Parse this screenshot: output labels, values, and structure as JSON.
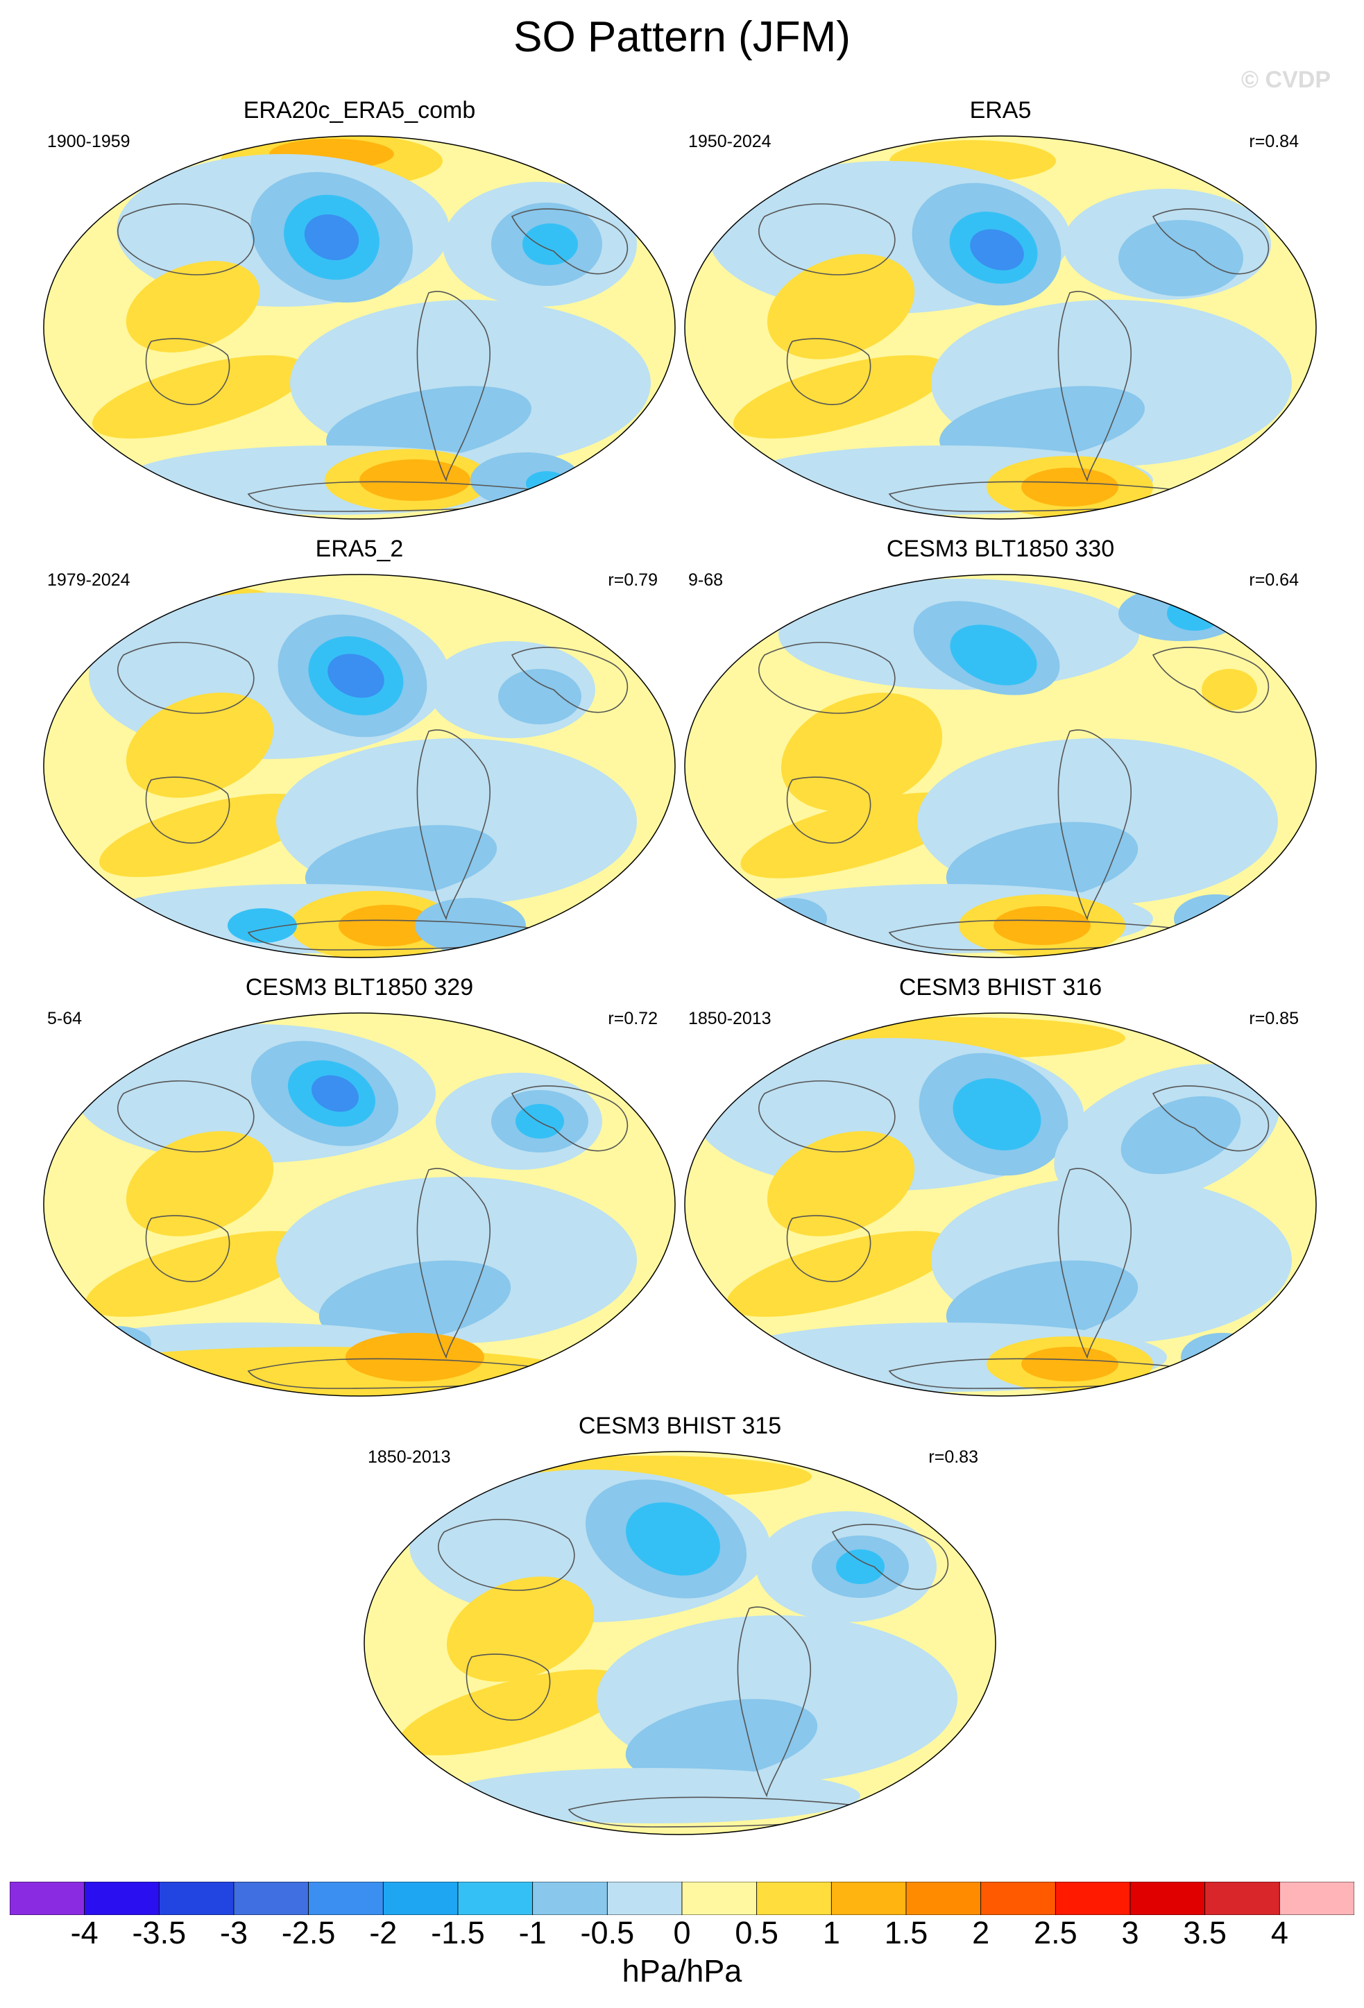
{
  "figure": {
    "title": "SO Pattern (JFM)",
    "watermark": "© CVDP"
  },
  "panels": [
    {
      "title": "ERA20c_ERA5_comb",
      "left_label": "1900-1959",
      "right_label": ""
    },
    {
      "title": "ERA5",
      "left_label": "1950-2024",
      "right_label": "r=0.84"
    },
    {
      "title": "ERA5_2",
      "left_label": "1979-2024",
      "right_label": "r=0.79"
    },
    {
      "title": "CESM3 BLT1850 330",
      "left_label": "9-68",
      "right_label": "r=0.64"
    },
    {
      "title": "CESM3 BLT1850 329",
      "left_label": "5-64",
      "right_label": "r=0.72"
    },
    {
      "title": "CESM3 BHIST 316",
      "left_label": "1850-2013",
      "right_label": "r=0.85"
    },
    {
      "title": "CESM3 BHIST 315",
      "left_label": "1850-2013",
      "right_label": "r=0.83"
    }
  ],
  "colorbar": {
    "units": "hPa/hPa",
    "tick_labels": [
      "-4",
      "-3.5",
      "-3",
      "-2.5",
      "-2",
      "-1.5",
      "-1",
      "-0.5",
      "0",
      "0.5",
      "1",
      "1.5",
      "2",
      "2.5",
      "3",
      "3.5",
      "4"
    ],
    "colors": [
      "#8a2be2",
      "#2a10f0",
      "#2244e0",
      "#3f6fe0",
      "#3a8ff0",
      "#1fa6f2",
      "#35c0f5",
      "#89c7ec",
      "#bde0f2",
      "#fff8a0",
      "#ffdd3c",
      "#ffb410",
      "#ff8c00",
      "#ff5a00",
      "#ff1a00",
      "#e00000",
      "#d8262a",
      "#ffb4b8"
    ]
  },
  "map_colors": {
    "neg_weak": "#bde0f2",
    "neg_mod": "#89c7ec",
    "neg_strong": "#35c0f5",
    "neg_stronger": "#1fa6f2",
    "neg_max": "#3a8ff0",
    "pos_weak": "#fff8a0",
    "pos_mod": "#ffdd3c",
    "pos_strong": "#ffb410",
    "coast": "#555555",
    "outline": "#000000"
  }
}
